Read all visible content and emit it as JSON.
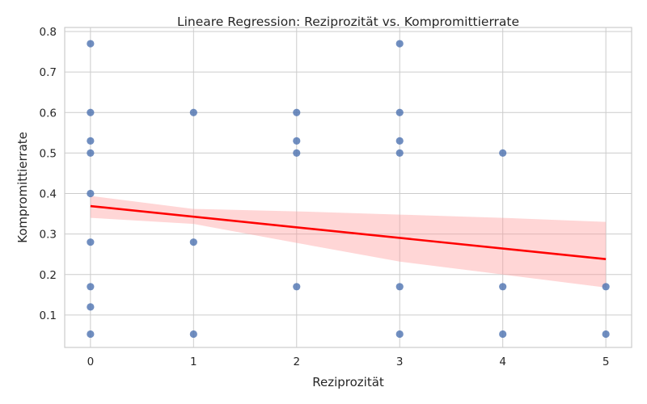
{
  "chart_data": {
    "type": "scatter",
    "title": "Lineare Regression: Reziprozität vs. Kompromittierrate",
    "xlabel": "Reziprozität",
    "ylabel": "Kompromittierrate",
    "xlim": [
      -0.25,
      5.25
    ],
    "ylim": [
      0.02,
      0.81
    ],
    "xticks": [
      0,
      1,
      2,
      3,
      4,
      5
    ],
    "yticks": [
      0.1,
      0.2,
      0.3,
      0.4,
      0.5,
      0.6,
      0.7,
      0.8
    ],
    "grid": true,
    "points": [
      [
        0,
        0.77
      ],
      [
        0,
        0.6
      ],
      [
        0,
        0.53
      ],
      [
        0,
        0.5
      ],
      [
        0,
        0.4
      ],
      [
        0,
        0.28
      ],
      [
        0,
        0.17
      ],
      [
        0,
        0.12
      ],
      [
        0,
        0.053
      ],
      [
        1,
        0.6
      ],
      [
        1,
        0.28
      ],
      [
        1,
        0.053
      ],
      [
        2,
        0.6
      ],
      [
        2,
        0.53
      ],
      [
        2,
        0.5
      ],
      [
        2,
        0.17
      ],
      [
        3,
        0.77
      ],
      [
        3,
        0.6
      ],
      [
        3,
        0.53
      ],
      [
        3,
        0.5
      ],
      [
        3,
        0.17
      ],
      [
        3,
        0.053
      ],
      [
        4,
        0.5
      ],
      [
        4,
        0.17
      ],
      [
        4,
        0.053
      ],
      [
        5,
        0.17
      ],
      [
        5,
        0.053
      ]
    ],
    "regression": {
      "x": [
        0,
        5
      ],
      "y": [
        0.369,
        0.238
      ]
    },
    "confidence_band": {
      "x": [
        0,
        1,
        2,
        3,
        4,
        5
      ],
      "upper": [
        0.394,
        0.362,
        0.356,
        0.348,
        0.34,
        0.33
      ],
      "lower": [
        0.34,
        0.325,
        0.278,
        0.232,
        0.2,
        0.168
      ]
    },
    "colors": {
      "points": "#4c72b0",
      "regression": "#ff0000",
      "band": "#ff9999"
    }
  }
}
